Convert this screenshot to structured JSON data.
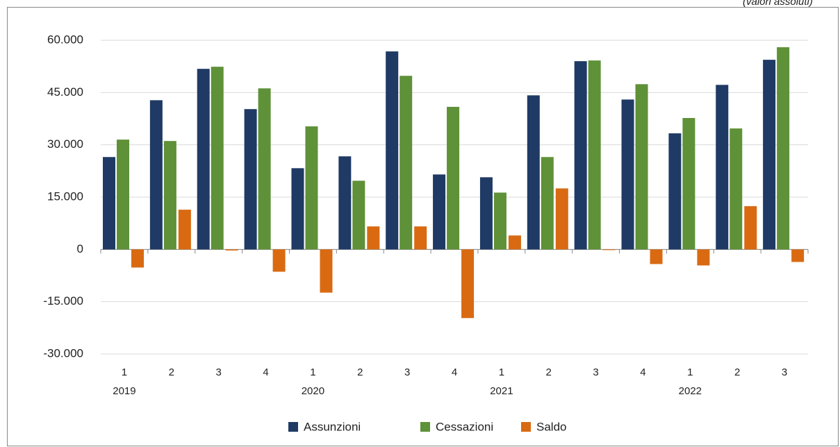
{
  "chart_data": {
    "type": "bar",
    "subtitle": "(valori assoluti)",
    "categories": [
      "1",
      "2",
      "3",
      "4",
      "1",
      "2",
      "3",
      "4",
      "1",
      "2",
      "3",
      "4",
      "1",
      "2",
      "3"
    ],
    "year_labels": [
      "2019",
      null,
      null,
      null,
      "2020",
      null,
      null,
      null,
      "2021",
      null,
      null,
      null,
      "2022",
      null,
      null
    ],
    "series": [
      {
        "name": "Assunzioni",
        "color": "#1f3a64",
        "values": [
          26500,
          42800,
          51800,
          40250,
          23300,
          26700,
          56800,
          21500,
          20700,
          44200,
          54000,
          43000,
          33300,
          47200,
          54400
        ]
      },
      {
        "name": "Cessazioni",
        "color": "#5f9138",
        "values": [
          31500,
          31100,
          52400,
          46200,
          35300,
          19700,
          49800,
          40900,
          16300,
          26500,
          54200,
          47400,
          37700,
          34700,
          58000
        ]
      },
      {
        "name": "Saldo",
        "color": "#d96a12",
        "values": [
          -5200,
          11400,
          -300,
          -6400,
          -12400,
          6600,
          6600,
          -19700,
          4000,
          17500,
          -200,
          -4200,
          -4600,
          12400,
          -3600
        ]
      }
    ],
    "ylim": [
      -30000,
      60000
    ],
    "yticks": [
      {
        "value": -30000,
        "label": "-30.000"
      },
      {
        "value": -15000,
        "label": "-15.000"
      },
      0,
      {
        "value": 15000,
        "label": "15.000"
      },
      {
        "value": 30000,
        "label": "30.000"
      },
      {
        "value": 45000,
        "label": "45.000"
      },
      {
        "value": 60000,
        "label": "60.000"
      }
    ],
    "grid": true,
    "legend": "bottom"
  }
}
